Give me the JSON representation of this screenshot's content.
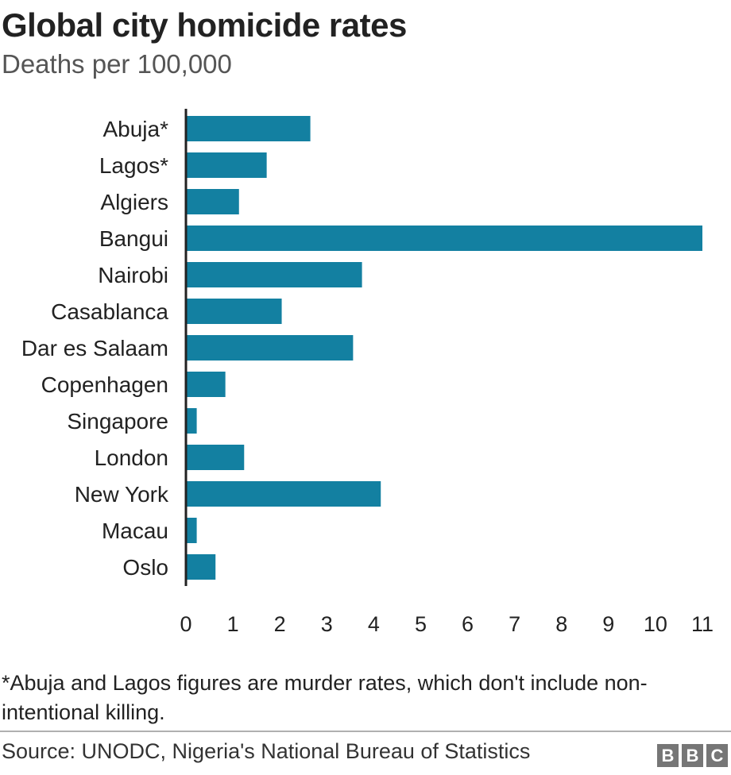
{
  "chart_data": {
    "type": "bar",
    "orientation": "horizontal",
    "title": "Global city homicide rates",
    "subtitle": "Deaths per 100,000",
    "categories": [
      "Abuja*",
      "Lagos*",
      "Algiers",
      "Bangui",
      "Nairobi",
      "Casablanca",
      "Dar es Salaam",
      "Copenhagen",
      "Singapore",
      "London",
      "New York",
      "Macau",
      "Oslo"
    ],
    "values": [
      2.65,
      1.72,
      1.13,
      11.0,
      3.75,
      2.04,
      3.56,
      0.84,
      0.23,
      1.24,
      4.15,
      0.23,
      0.63
    ],
    "xlim": [
      0,
      11
    ],
    "xticks": [
      0,
      1,
      2,
      3,
      4,
      5,
      6,
      7,
      8,
      9,
      10,
      11
    ],
    "xlabel": "",
    "ylabel": "",
    "bar_color": "#1380A1"
  },
  "footnote": "*Abuja and Lagos figures are murder rates, which don't include non-intentional killing.",
  "source": "Source: UNODC, Nigeria's National Bureau of Statistics",
  "logo": {
    "letters": [
      "B",
      "B",
      "C"
    ],
    "color": "#767676"
  }
}
